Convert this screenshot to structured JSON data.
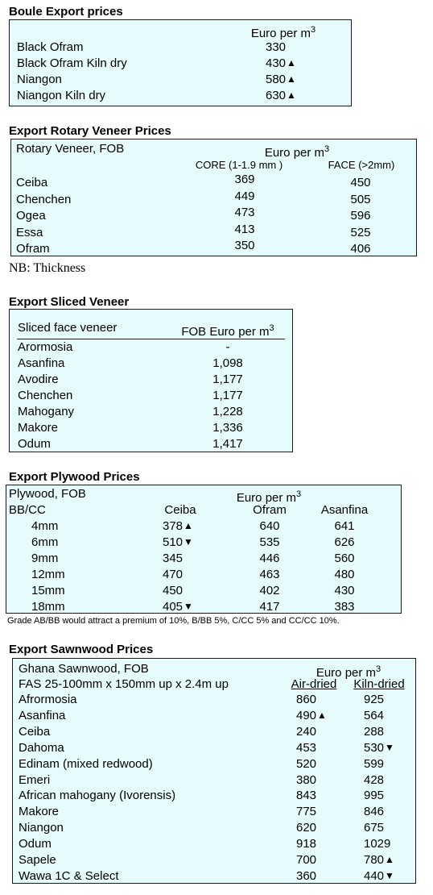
{
  "boule": {
    "title": "Boule Export prices",
    "unit": "Euro per m",
    "unit_sup": "3",
    "rows": [
      {
        "name": "Black Ofram",
        "price": "330",
        "trend": ""
      },
      {
        "name": "Black Ofram  Kiln dry",
        "price": "430",
        "trend": "up"
      },
      {
        "name": "Niangon",
        "price": "580",
        "trend": "up"
      },
      {
        "name": "Niangon Kiln dry",
        "price": "630",
        "trend": "up"
      }
    ]
  },
  "rotary": {
    "title": "Export Rotary Veneer Prices",
    "header_label": "Rotary Veneer,  FOB",
    "unit": "Euro  per m",
    "unit_sup": "3",
    "col_core": "CORE (1-1.9 mm )",
    "col_face": "FACE (>2mm)",
    "rows": [
      {
        "name": "Ceiba",
        "core": "369",
        "face": "450"
      },
      {
        "name": "Chenchen",
        "core": "449",
        "face": "505"
      },
      {
        "name": "Ogea",
        "core": "473",
        "face": "596"
      },
      {
        "name": "Essa",
        "core": "413",
        "face": "525"
      },
      {
        "name": "Ofram",
        "core": "350",
        "face": "406"
      }
    ],
    "note": "NB: Thickness"
  },
  "sliced": {
    "title": "Export Sliced Veneer",
    "header_label": "Sliced face veneer",
    "unit": "FOB Euro per m",
    "unit_sup": "3",
    "rows": [
      {
        "name": "Arormosia",
        "price": "-"
      },
      {
        "name": "Asanfina",
        "price": "1,098"
      },
      {
        "name": "Avodire",
        "price": "1,177"
      },
      {
        "name": "Chenchen",
        "price": "1,177"
      },
      {
        "name": "Mahogany",
        "price": "1,228"
      },
      {
        "name": "Makore",
        "price": "1,336"
      },
      {
        "name": "Odum",
        "price": "1,417"
      }
    ]
  },
  "plywood": {
    "title": "Export Plywood Prices",
    "header_label": "Plywood, FOB",
    "unit": "Euro per m",
    "unit_sup": "3",
    "grade_label": "BB/CC",
    "columns": [
      "Ceiba",
      "Ofram",
      "Asanfina"
    ],
    "rows": [
      {
        "size": "4mm",
        "ceiba": "378",
        "ceiba_trend": "up",
        "ofram": "640",
        "asanfina": "641"
      },
      {
        "size": "6mm",
        "ceiba": "510",
        "ceiba_trend": "down",
        "ofram": "535",
        "asanfina": "626"
      },
      {
        "size": "9mm",
        "ceiba": "345",
        "ceiba_trend": "",
        "ofram": "446",
        "asanfina": "560"
      },
      {
        "size": "12mm",
        "ceiba": "470",
        "ceiba_trend": "",
        "ofram": "463",
        "asanfina": "480"
      },
      {
        "size": "15mm",
        "ceiba": "450",
        "ceiba_trend": "",
        "ofram": "402",
        "asanfina": "430"
      },
      {
        "size": "18mm",
        "ceiba": "405",
        "ceiba_trend": "down",
        "ofram": "417",
        "asanfina": "383"
      }
    ],
    "note": "Grade AB/BB would attract a premium of 10%, B/BB 5%, C/CC 5% and CC/CC 10%."
  },
  "sawnwood": {
    "title": "Export Sawnwood Prices",
    "header_label": "Ghana Sawnwood, FOB",
    "unit": "Euro per m",
    "unit_sup": "3",
    "spec": "FAS 25-100mm x 150mm up x 2.4m up",
    "col_air": "Air-dried",
    "col_kiln": "Kiln-dried",
    "rows": [
      {
        "name": "Afrormosia",
        "air": "860",
        "air_trend": "",
        "kiln": "925",
        "kiln_trend": ""
      },
      {
        "name": "Asanfina",
        "air": "490",
        "air_trend": "up",
        "kiln": "564",
        "kiln_trend": ""
      },
      {
        "name": "Ceiba",
        "air": "240",
        "air_trend": "",
        "kiln": "288",
        "kiln_trend": ""
      },
      {
        "name": "Dahoma",
        "air": "453",
        "air_trend": "",
        "kiln": "530",
        "kiln_trend": "down"
      },
      {
        "name": "Edinam (mixed redwood)",
        "air": "520",
        "air_trend": "",
        "kiln": "599",
        "kiln_trend": ""
      },
      {
        "name": "Emeri",
        "air": "380",
        "air_trend": "",
        "kiln": "428",
        "kiln_trend": ""
      },
      {
        "name": "African mahogany (Ivorensis)",
        "air": "843",
        "air_trend": "",
        "kiln": "995",
        "kiln_trend": ""
      },
      {
        "name": "Makore",
        "air": "775",
        "air_trend": "",
        "kiln": "846",
        "kiln_trend": ""
      },
      {
        "name": "Niangon",
        "air": "620",
        "air_trend": "",
        "kiln": "675",
        "kiln_trend": ""
      },
      {
        "name": "Odum",
        "air": "918",
        "air_trend": "",
        "kiln": "1029",
        "kiln_trend": ""
      },
      {
        "name": "Sapele",
        "air": "700",
        "air_trend": "",
        "kiln": "780",
        "kiln_trend": "up"
      },
      {
        "name": "Wawa 1C & Select",
        "air": "360",
        "air_trend": "",
        "kiln": "440",
        "kiln_trend": "down"
      }
    ]
  },
  "icons": {
    "up": "arrow-up-icon",
    "down": "arrow-down-icon"
  },
  "colors": {
    "box_bg": "#e6fbfb",
    "border": "#1a1a1a"
  }
}
